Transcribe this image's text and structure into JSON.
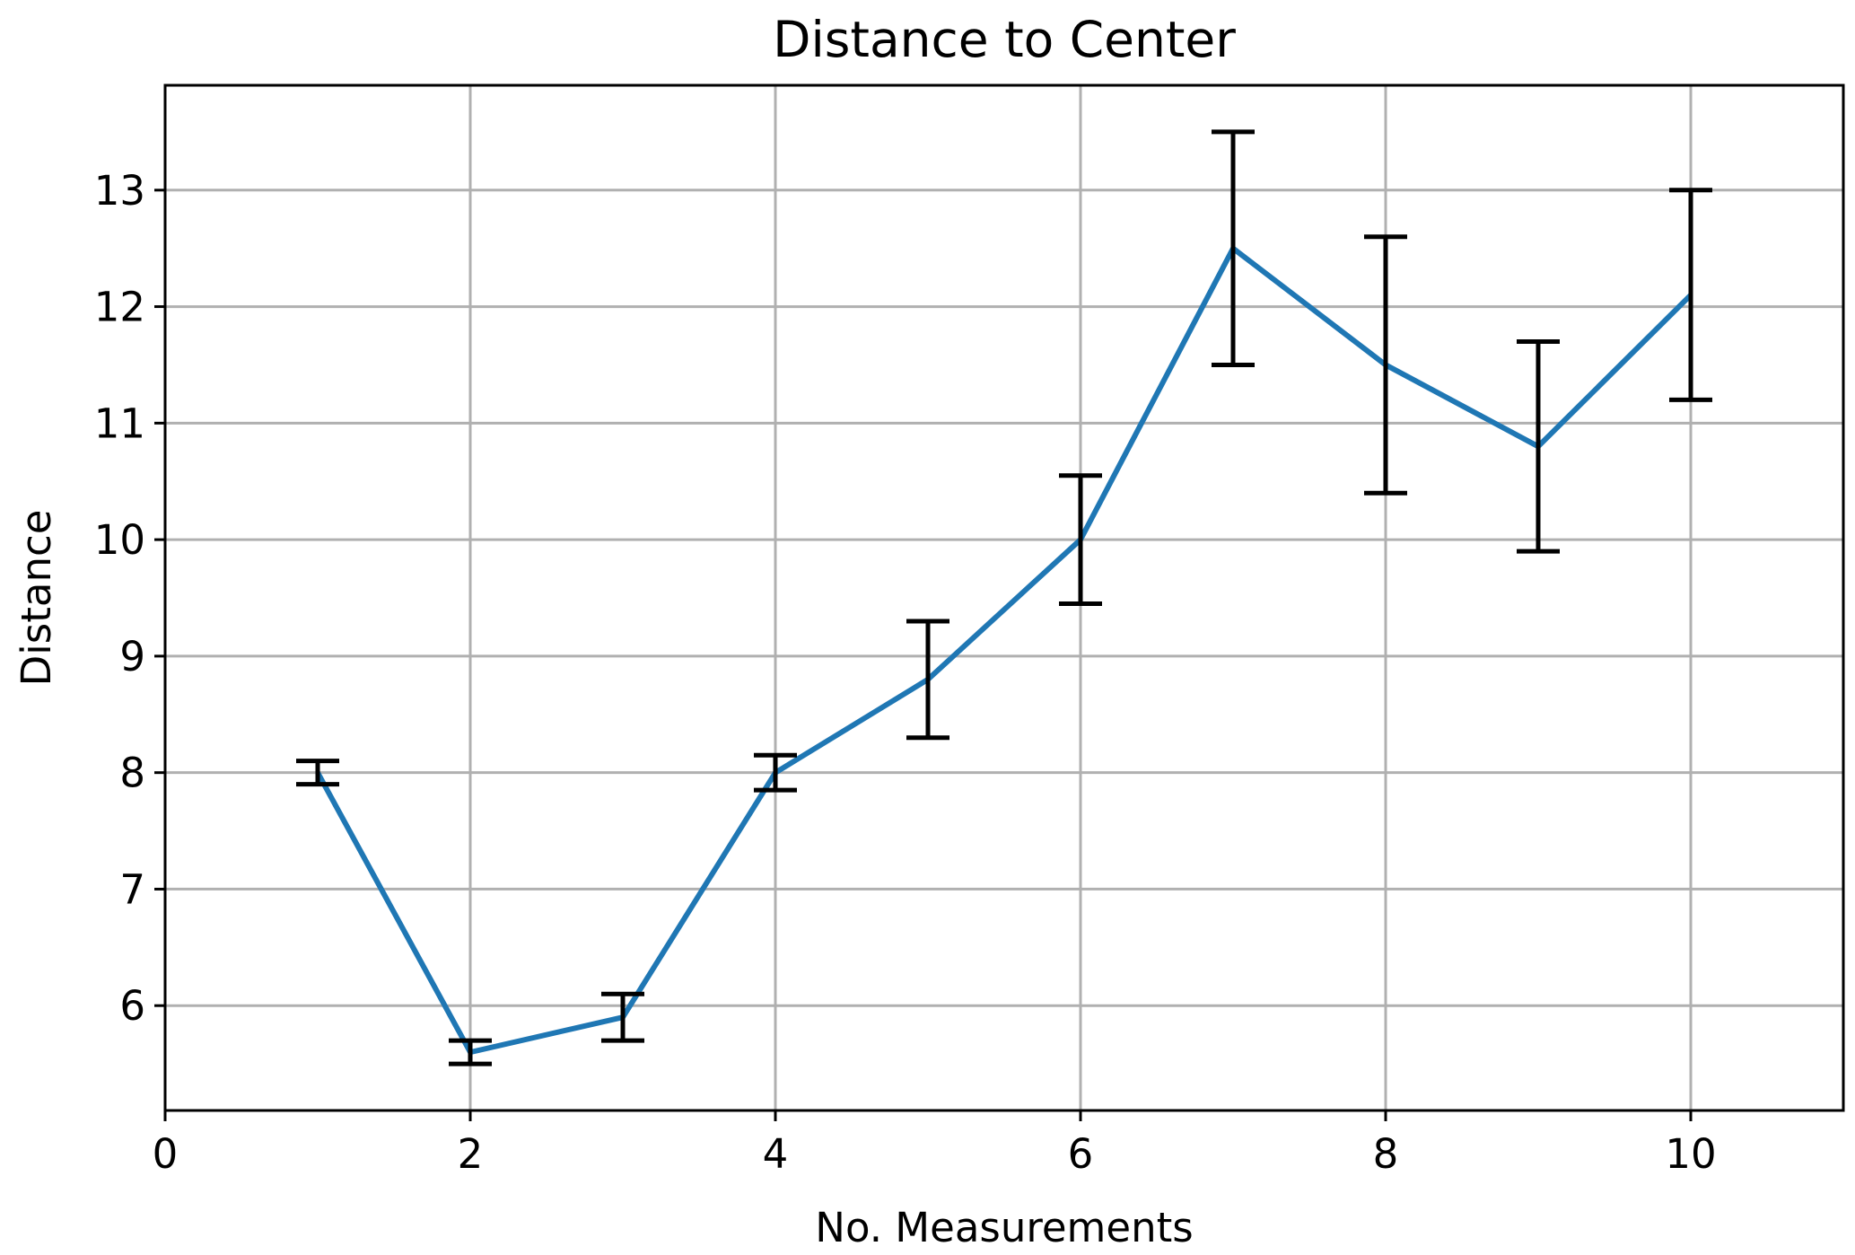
{
  "chart_data": {
    "type": "line",
    "title": "Distance to Center",
    "xlabel": "No. Measurements",
    "ylabel": "Distance",
    "xlim": [
      0,
      11
    ],
    "ylim": [
      5.1,
      13.9
    ],
    "xticks": [
      0,
      2,
      4,
      6,
      8,
      10
    ],
    "yticks": [
      6,
      7,
      8,
      9,
      10,
      11,
      12,
      13
    ],
    "grid": true,
    "series": [
      {
        "x": [
          1,
          2,
          3,
          4,
          5,
          6,
          7,
          8,
          9,
          10
        ],
        "y": [
          8.0,
          5.6,
          5.9,
          8.0,
          8.8,
          10.0,
          12.5,
          11.5,
          10.8,
          12.1
        ],
        "err_low": [
          7.9,
          5.5,
          5.7,
          7.85,
          8.3,
          9.45,
          11.5,
          10.4,
          9.9,
          11.2
        ],
        "err_high": [
          8.1,
          5.7,
          6.1,
          8.15,
          9.3,
          10.55,
          13.5,
          12.6,
          11.7,
          13.0
        ],
        "color": "#1f77b4"
      }
    ],
    "errorbar_color": "#000000",
    "grid_color": "#b0b0b0"
  }
}
